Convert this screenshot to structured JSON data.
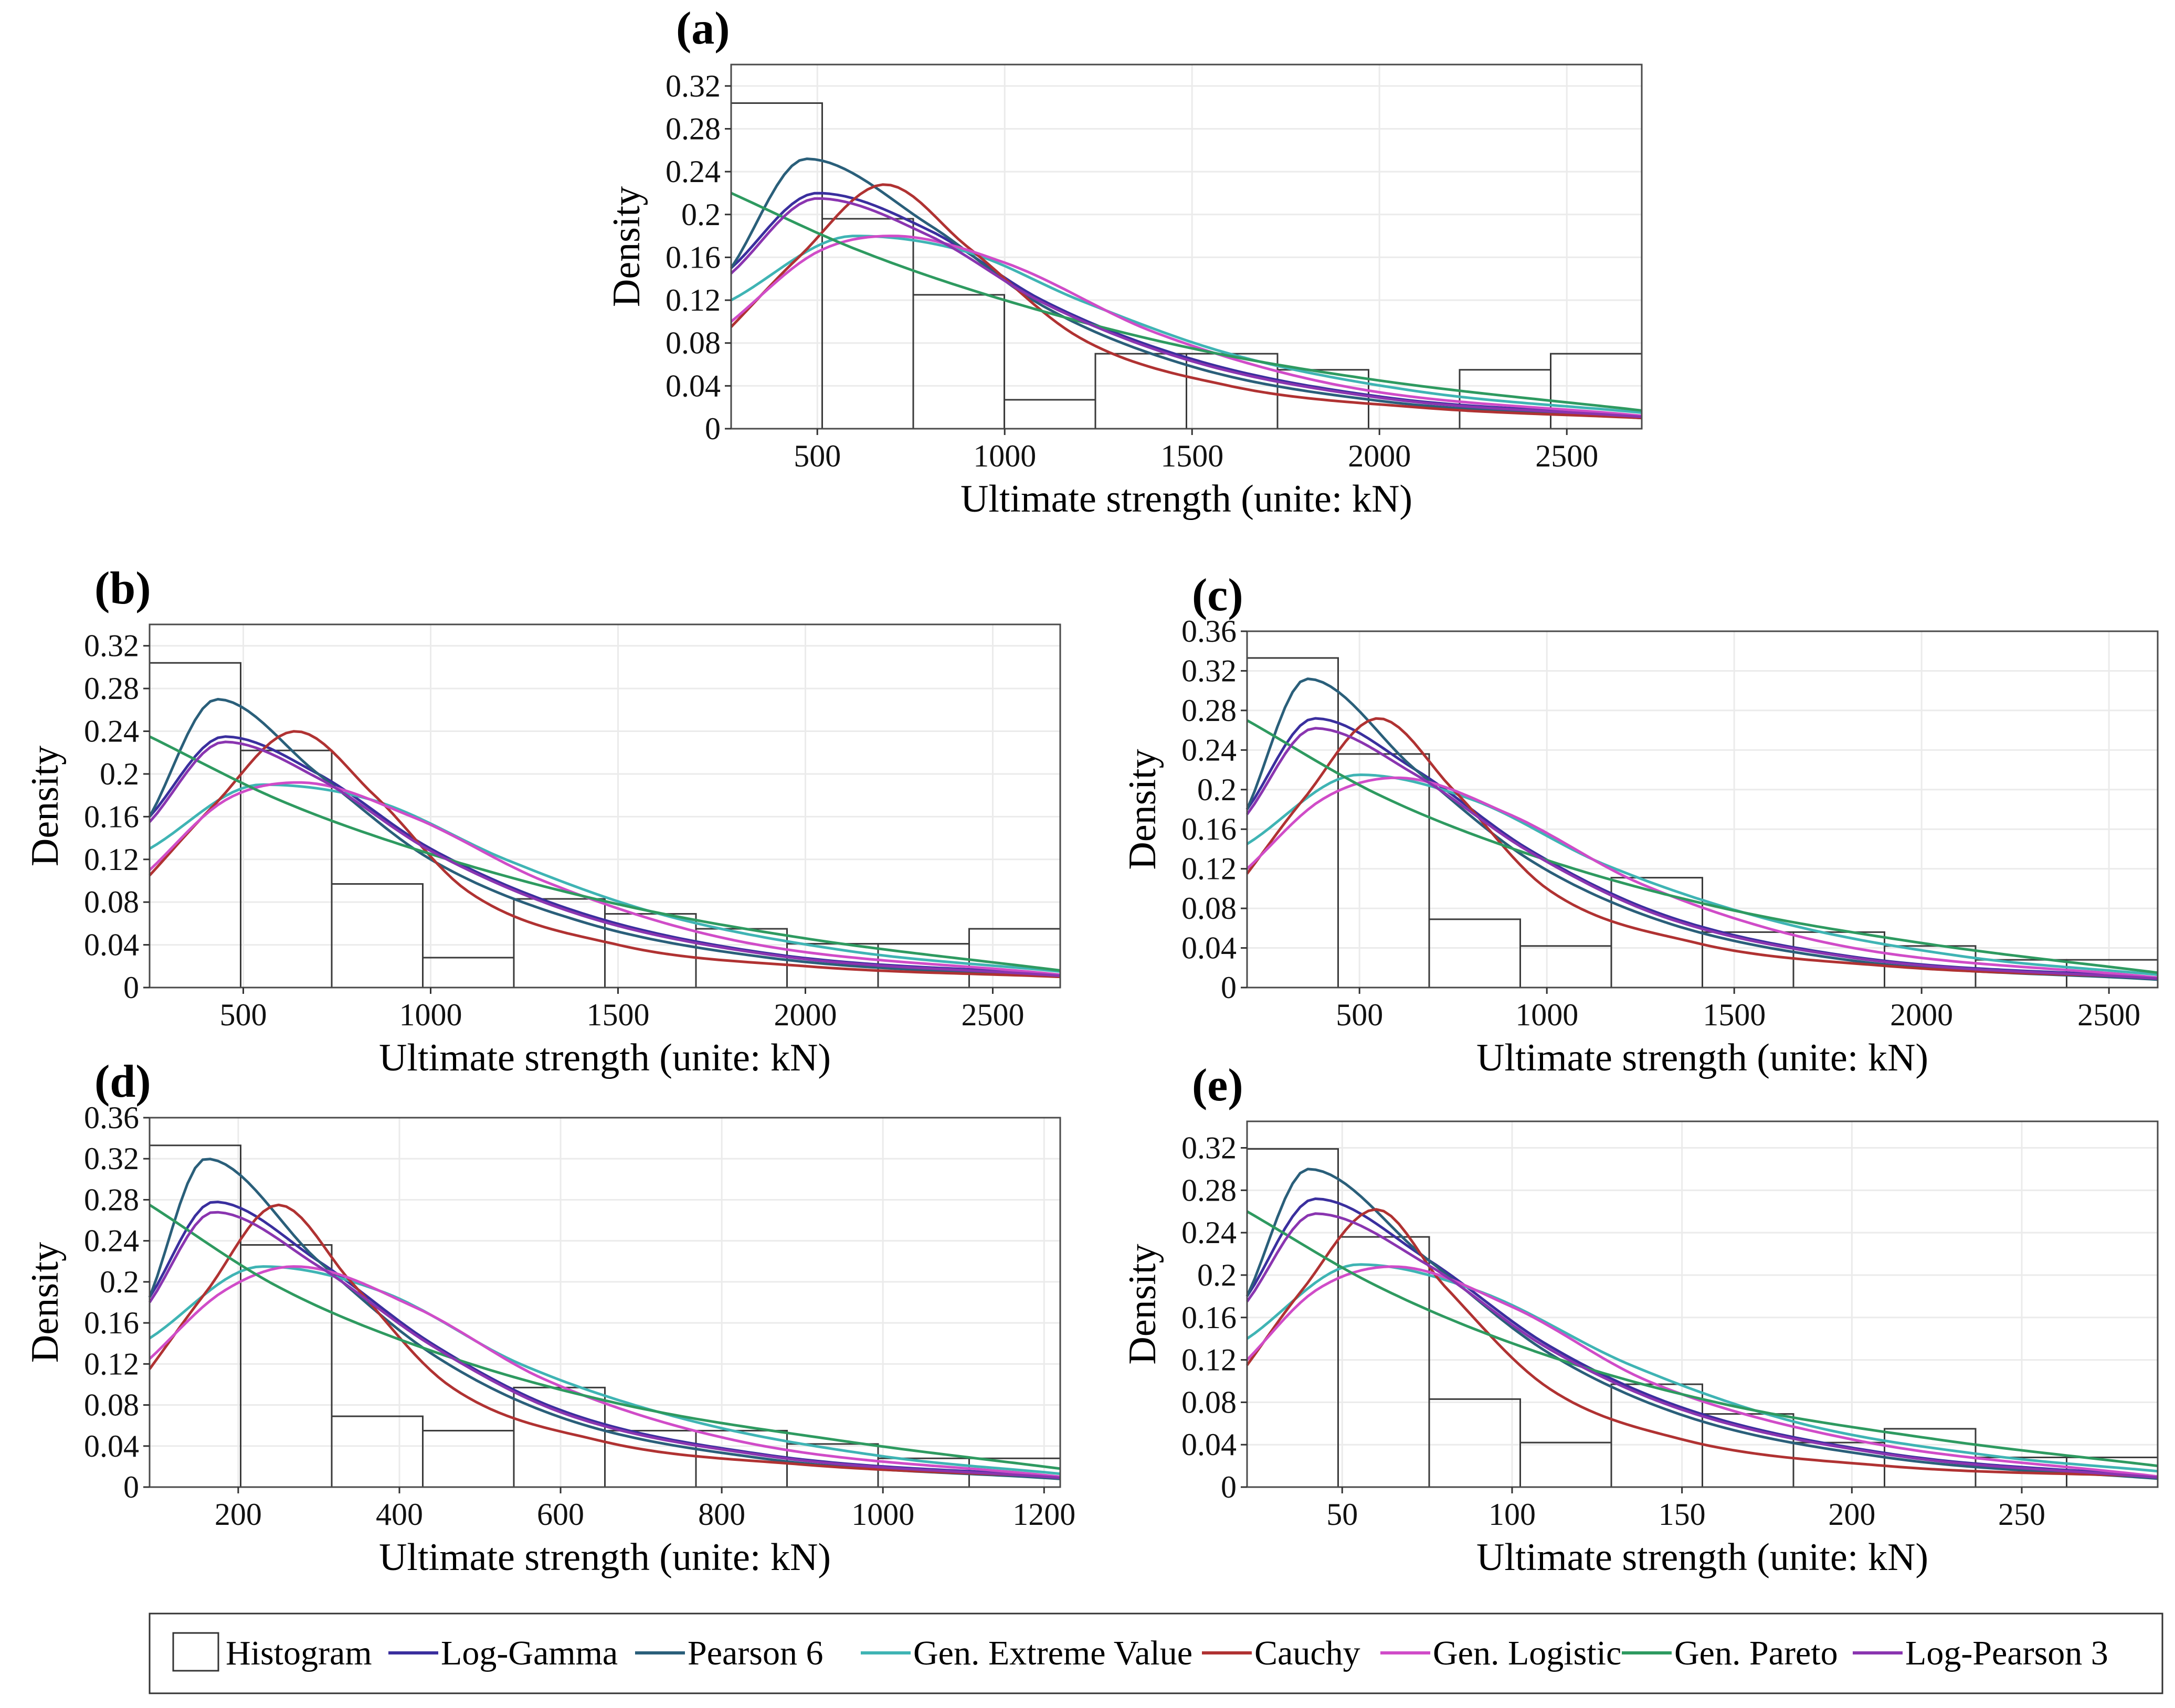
{
  "legend": {
    "items": [
      {
        "key": "histogram",
        "label": "Histogram",
        "color": "#333333",
        "kind": "box"
      },
      {
        "key": "log_gamma",
        "label": "Log-Gamma",
        "color": "#3a2f9e",
        "kind": "line"
      },
      {
        "key": "pearson6",
        "label": "Pearson 6",
        "color": "#2a5f7a",
        "kind": "line"
      },
      {
        "key": "gev",
        "label": "Gen. Extreme Value",
        "color": "#3fb4b4",
        "kind": "line"
      },
      {
        "key": "cauchy",
        "label": "Cauchy",
        "color": "#b03232",
        "kind": "line"
      },
      {
        "key": "gen_logistic",
        "label": "Gen. Logistic",
        "color": "#d04cc8",
        "kind": "line"
      },
      {
        "key": "gen_pareto",
        "label": "Gen. Pareto",
        "color": "#2e9a60",
        "kind": "line"
      },
      {
        "key": "log_pearson3",
        "label": "Log-Pearson 3",
        "color": "#8a35b0",
        "kind": "line"
      }
    ]
  },
  "chart_data": [
    {
      "id": "a",
      "panel_label": "(a)",
      "type": "histogram",
      "xlabel": "Ultimate strength (unite: kN)",
      "ylabel": "Density",
      "xlim": [
        270,
        2700
      ],
      "ylim": [
        0,
        0.34
      ],
      "x_ticks": [
        500,
        1000,
        1500,
        2000,
        2500
      ],
      "x_tick_labels": [
        "500",
        "1000",
        "1500",
        "2000",
        "2500"
      ],
      "y_ticks": [
        0,
        0.04,
        0.08,
        0.12,
        0.16,
        0.2,
        0.24,
        0.28,
        0.32
      ],
      "y_tick_labels": [
        "0",
        "0.04",
        "0.08",
        "0.12",
        "0.16",
        "0.2",
        "0.24",
        "0.28",
        "0.32"
      ],
      "bin_edges": [
        270,
        513,
        756,
        999,
        1242,
        1485,
        1728,
        1971,
        2214,
        2457,
        2700
      ],
      "hist_values": [
        0.304,
        0.196,
        0.125,
        0.027,
        0.07,
        0.07,
        0.055,
        0,
        0.055,
        0.07
      ],
      "curves": [
        {
          "key": "log_gamma",
          "x": [
            270,
            500,
            800,
            1100,
            1500,
            2000,
            2700
          ],
          "y": [
            0.15,
            0.22,
            0.185,
            0.12,
            0.065,
            0.03,
            0.012
          ]
        },
        {
          "key": "pearson6",
          "x": [
            270,
            470,
            800,
            1100,
            1500,
            2000,
            2700
          ],
          "y": [
            0.15,
            0.252,
            0.19,
            0.115,
            0.058,
            0.026,
            0.01
          ]
        },
        {
          "key": "gev",
          "x": [
            270,
            600,
            900,
            1200,
            1600,
            2100,
            2700
          ],
          "y": [
            0.12,
            0.18,
            0.165,
            0.12,
            0.07,
            0.035,
            0.015
          ]
        },
        {
          "key": "cauchy",
          "x": [
            270,
            450,
            680,
            900,
            1200,
            1600,
            2100,
            2700
          ],
          "y": [
            0.095,
            0.16,
            0.228,
            0.17,
            0.085,
            0.04,
            0.02,
            0.01
          ]
        },
        {
          "key": "gen_logistic",
          "x": [
            270,
            500,
            700,
            1000,
            1400,
            1900,
            2700
          ],
          "y": [
            0.1,
            0.165,
            0.18,
            0.155,
            0.09,
            0.04,
            0.012
          ]
        },
        {
          "key": "gen_pareto",
          "x": [
            270,
            600,
            1000,
            1500,
            2000,
            2700
          ],
          "y": [
            0.22,
            0.168,
            0.12,
            0.075,
            0.045,
            0.017
          ]
        },
        {
          "key": "log_pearson3",
          "x": [
            270,
            500,
            800,
            1100,
            1500,
            2000,
            2700
          ],
          "y": [
            0.145,
            0.215,
            0.18,
            0.118,
            0.063,
            0.029,
            0.011
          ]
        }
      ]
    },
    {
      "id": "b",
      "panel_label": "(b)",
      "type": "histogram",
      "xlabel": "Ultimate strength (unite: kN)",
      "ylabel": "Density",
      "xlim": [
        250,
        2680
      ],
      "ylim": [
        0,
        0.34
      ],
      "x_ticks": [
        500,
        1000,
        1500,
        2000,
        2500
      ],
      "x_tick_labels": [
        "500",
        "1000",
        "1500",
        "2000",
        "2500"
      ],
      "y_ticks": [
        0,
        0.04,
        0.08,
        0.12,
        0.16,
        0.2,
        0.24,
        0.28,
        0.32
      ],
      "y_tick_labels": [
        "0",
        "0.04",
        "0.08",
        "0.12",
        "0.16",
        "0.2",
        "0.24",
        "0.28",
        "0.32"
      ],
      "bin_edges": [
        250,
        493,
        736,
        979,
        1222,
        1465,
        1708,
        1951,
        2194,
        2437,
        2680
      ],
      "hist_values": [
        0.304,
        0.222,
        0.097,
        0.028,
        0.083,
        0.069,
        0.055,
        0.041,
        0.041,
        0.055
      ],
      "curves": [
        {
          "key": "log_gamma",
          "x": [
            250,
            450,
            700,
            1000,
            1400,
            1900,
            2680
          ],
          "y": [
            0.16,
            0.235,
            0.2,
            0.13,
            0.07,
            0.032,
            0.012
          ]
        },
        {
          "key": "pearson6",
          "x": [
            250,
            430,
            700,
            1000,
            1400,
            1900,
            2680
          ],
          "y": [
            0.16,
            0.27,
            0.2,
            0.12,
            0.062,
            0.028,
            0.01
          ]
        },
        {
          "key": "gev",
          "x": [
            250,
            550,
            850,
            1200,
            1600,
            2100,
            2680
          ],
          "y": [
            0.13,
            0.19,
            0.175,
            0.12,
            0.07,
            0.035,
            0.015
          ]
        },
        {
          "key": "cauchy",
          "x": [
            250,
            420,
            640,
            850,
            1100,
            1500,
            2000,
            2680
          ],
          "y": [
            0.105,
            0.17,
            0.24,
            0.18,
            0.09,
            0.04,
            0.02,
            0.01
          ]
        },
        {
          "key": "gen_logistic",
          "x": [
            250,
            450,
            650,
            950,
            1300,
            1800,
            2680
          ],
          "y": [
            0.11,
            0.175,
            0.192,
            0.16,
            0.1,
            0.045,
            0.012
          ]
        },
        {
          "key": "gen_pareto",
          "x": [
            250,
            600,
            1000,
            1500,
            2000,
            2680
          ],
          "y": [
            0.235,
            0.175,
            0.125,
            0.078,
            0.046,
            0.016
          ]
        },
        {
          "key": "log_pearson3",
          "x": [
            250,
            450,
            700,
            1000,
            1400,
            1900,
            2680
          ],
          "y": [
            0.155,
            0.23,
            0.196,
            0.128,
            0.068,
            0.031,
            0.011
          ]
        }
      ]
    },
    {
      "id": "c",
      "panel_label": "(c)",
      "type": "histogram",
      "xlabel": "Ultimate strength (unite: kN)",
      "ylabel": "Density",
      "xlim": [
        200,
        2630
      ],
      "ylim": [
        0,
        0.36
      ],
      "x_ticks": [
        500,
        1000,
        1500,
        2000,
        2500
      ],
      "x_tick_labels": [
        "500",
        "1000",
        "1500",
        "2000",
        "2500"
      ],
      "y_ticks": [
        0,
        0.04,
        0.08,
        0.12,
        0.16,
        0.2,
        0.24,
        0.28,
        0.32,
        0.36
      ],
      "y_tick_labels": [
        "0",
        "0.04",
        "0.08",
        "0.12",
        "0.16",
        "0.2",
        "0.24",
        "0.28",
        "0.32",
        "0.36"
      ],
      "bin_edges": [
        200,
        443,
        686,
        929,
        1172,
        1415,
        1658,
        1901,
        2144,
        2387,
        2630
      ],
      "hist_values": [
        0.333,
        0.236,
        0.069,
        0.042,
        0.111,
        0.056,
        0.056,
        0.042,
        0.028,
        0.028
      ],
      "curves": [
        {
          "key": "log_gamma",
          "x": [
            200,
            380,
            650,
            950,
            1300,
            1800,
            2630
          ],
          "y": [
            0.18,
            0.272,
            0.22,
            0.14,
            0.075,
            0.032,
            0.01
          ]
        },
        {
          "key": "pearson6",
          "x": [
            200,
            360,
            650,
            950,
            1300,
            1800,
            2630
          ],
          "y": [
            0.18,
            0.312,
            0.22,
            0.13,
            0.068,
            0.028,
            0.008
          ]
        },
        {
          "key": "gev",
          "x": [
            200,
            500,
            800,
            1150,
            1600,
            2100,
            2630
          ],
          "y": [
            0.145,
            0.215,
            0.19,
            0.125,
            0.068,
            0.032,
            0.013
          ]
        },
        {
          "key": "cauchy",
          "x": [
            200,
            350,
            550,
            750,
            1000,
            1400,
            1900,
            2630
          ],
          "y": [
            0.115,
            0.19,
            0.272,
            0.2,
            0.1,
            0.045,
            0.022,
            0.01
          ]
        },
        {
          "key": "gen_logistic",
          "x": [
            200,
            400,
            600,
            900,
            1250,
            1750,
            2630
          ],
          "y": [
            0.12,
            0.19,
            0.212,
            0.175,
            0.105,
            0.045,
            0.01
          ]
        },
        {
          "key": "gen_pareto",
          "x": [
            200,
            550,
            950,
            1450,
            2000,
            2630
          ],
          "y": [
            0.27,
            0.195,
            0.135,
            0.082,
            0.045,
            0.015
          ]
        },
        {
          "key": "log_pearson3",
          "x": [
            200,
            380,
            650,
            950,
            1300,
            1800,
            2630
          ],
          "y": [
            0.175,
            0.262,
            0.215,
            0.138,
            0.073,
            0.031,
            0.009
          ]
        }
      ]
    },
    {
      "id": "d",
      "panel_label": "(d)",
      "type": "histogram",
      "xlabel": "Ultimate strength (unite: kN)",
      "ylabel": "Density",
      "xlim": [
        90,
        1220
      ],
      "ylim": [
        0,
        0.36
      ],
      "x_ticks": [
        200,
        400,
        600,
        800,
        1000,
        1200
      ],
      "x_tick_labels": [
        "200",
        "400",
        "600",
        "800",
        "1000",
        "1200"
      ],
      "y_ticks": [
        0,
        0.04,
        0.08,
        0.12,
        0.16,
        0.2,
        0.24,
        0.28,
        0.32,
        0.36
      ],
      "y_tick_labels": [
        "0",
        "0.04",
        "0.08",
        "0.12",
        "0.16",
        "0.2",
        "0.24",
        "0.28",
        "0.32",
        "0.36"
      ],
      "bin_edges": [
        90,
        203,
        316,
        429,
        542,
        655,
        768,
        881,
        994,
        1107,
        1220
      ],
      "hist_values": [
        0.333,
        0.236,
        0.069,
        0.055,
        0.097,
        0.055,
        0.055,
        0.042,
        0.028,
        0.028
      ],
      "curves": [
        {
          "key": "log_gamma",
          "x": [
            90,
            170,
            300,
            440,
            600,
            850,
            1220
          ],
          "y": [
            0.185,
            0.278,
            0.22,
            0.14,
            0.075,
            0.032,
            0.01
          ]
        },
        {
          "key": "pearson6",
          "x": [
            90,
            160,
            300,
            440,
            600,
            850,
            1220
          ],
          "y": [
            0.185,
            0.32,
            0.22,
            0.13,
            0.068,
            0.028,
            0.008
          ]
        },
        {
          "key": "gev",
          "x": [
            90,
            230,
            380,
            550,
            760,
            1000,
            1220
          ],
          "y": [
            0.145,
            0.215,
            0.19,
            0.12,
            0.065,
            0.03,
            0.013
          ]
        },
        {
          "key": "cauchy",
          "x": [
            90,
            160,
            250,
            340,
            460,
            650,
            900,
            1220
          ],
          "y": [
            0.115,
            0.19,
            0.275,
            0.2,
            0.1,
            0.045,
            0.022,
            0.01
          ]
        },
        {
          "key": "gen_logistic",
          "x": [
            90,
            180,
            270,
            420,
            580,
            820,
            1220
          ],
          "y": [
            0.125,
            0.19,
            0.215,
            0.175,
            0.105,
            0.045,
            0.01
          ]
        },
        {
          "key": "gen_pareto",
          "x": [
            90,
            250,
            450,
            680,
            950,
            1220
          ],
          "y": [
            0.275,
            0.195,
            0.13,
            0.08,
            0.045,
            0.018
          ]
        },
        {
          "key": "log_pearson3",
          "x": [
            90,
            170,
            300,
            440,
            600,
            850,
            1220
          ],
          "y": [
            0.18,
            0.268,
            0.215,
            0.138,
            0.073,
            0.031,
            0.009
          ]
        }
      ]
    },
    {
      "id": "e",
      "panel_label": "(e)",
      "type": "histogram",
      "xlabel": "Ultimate strength (unite: kN)",
      "ylabel": "Density",
      "xlim": [
        22,
        290
      ],
      "ylim": [
        0,
        0.345
      ],
      "x_ticks": [
        50,
        100,
        150,
        200,
        250
      ],
      "x_tick_labels": [
        "50",
        "100",
        "150",
        "200",
        "250"
      ],
      "y_ticks": [
        0,
        0.04,
        0.08,
        0.12,
        0.16,
        0.2,
        0.24,
        0.28,
        0.32
      ],
      "y_tick_labels": [
        "0",
        "0.04",
        "0.08",
        "0.12",
        "0.16",
        "0.2",
        "0.24",
        "0.28",
        "0.32"
      ],
      "bin_edges": [
        22,
        48.8,
        75.6,
        102.4,
        129.2,
        156,
        182.8,
        209.6,
        236.4,
        263.2,
        290
      ],
      "hist_values": [
        0.319,
        0.236,
        0.083,
        0.042,
        0.097,
        0.069,
        0.042,
        0.055,
        0.028,
        0.028
      ],
      "curves": [
        {
          "key": "log_gamma",
          "x": [
            22,
            42,
            75,
            110,
            150,
            210,
            290
          ],
          "y": [
            0.18,
            0.272,
            0.215,
            0.135,
            0.075,
            0.032,
            0.01
          ]
        },
        {
          "key": "pearson6",
          "x": [
            22,
            40,
            75,
            110,
            150,
            210,
            290
          ],
          "y": [
            0.18,
            0.3,
            0.215,
            0.128,
            0.068,
            0.028,
            0.008
          ]
        },
        {
          "key": "gev",
          "x": [
            22,
            55,
            90,
            135,
            185,
            240,
            290
          ],
          "y": [
            0.14,
            0.21,
            0.185,
            0.115,
            0.06,
            0.03,
            0.015
          ]
        },
        {
          "key": "cauchy",
          "x": [
            22,
            38,
            60,
            80,
            110,
            150,
            210,
            290
          ],
          "y": [
            0.115,
            0.185,
            0.262,
            0.19,
            0.095,
            0.045,
            0.02,
            0.01
          ]
        },
        {
          "key": "gen_logistic",
          "x": [
            22,
            42,
            65,
            100,
            140,
            200,
            290
          ],
          "y": [
            0.12,
            0.185,
            0.208,
            0.17,
            0.1,
            0.045,
            0.01
          ]
        },
        {
          "key": "gen_pareto",
          "x": [
            22,
            60,
            105,
            160,
            225,
            290
          ],
          "y": [
            0.26,
            0.19,
            0.13,
            0.08,
            0.045,
            0.02
          ]
        },
        {
          "key": "log_pearson3",
          "x": [
            22,
            42,
            75,
            110,
            150,
            210,
            290
          ],
          "y": [
            0.175,
            0.258,
            0.21,
            0.132,
            0.073,
            0.031,
            0.009
          ]
        }
      ]
    }
  ]
}
